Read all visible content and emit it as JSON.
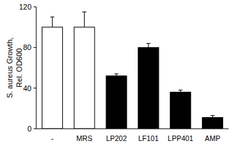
{
  "chart_data": {
    "type": "bar",
    "y_label": [
      "S. aureus Growth,",
      "Rel. OD600"
    ],
    "categories": [
      "-",
      "MRS",
      "LP202",
      "LF101",
      "LPP401",
      "AMP"
    ],
    "values": [
      100,
      100,
      52,
      80,
      36,
      11
    ],
    "errors": [
      10,
      15,
      2,
      4,
      2,
      2
    ],
    "colors": [
      "#ffffff",
      "#ffffff",
      "#000000",
      "#000000",
      "#000000",
      "#000000"
    ],
    "ylim": [
      0,
      120
    ],
    "yticks": [
      0,
      40,
      80,
      120
    ],
    "grid": false
  }
}
